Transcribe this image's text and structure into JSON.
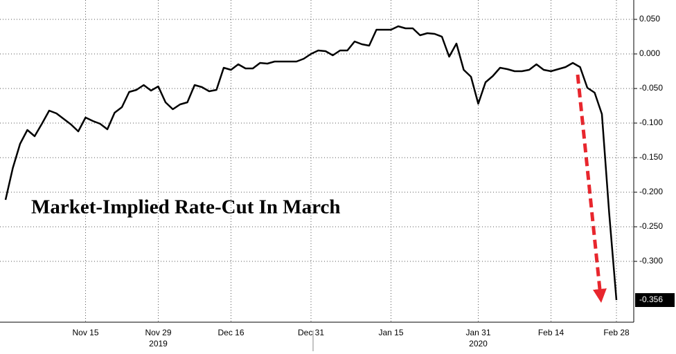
{
  "chart_data": {
    "type": "line",
    "title": "Market-Implied Rate-Cut In March",
    "categories": [
      null,
      null,
      null,
      null,
      null,
      null,
      null,
      null,
      null,
      null,
      null,
      "Nov 15",
      null,
      null,
      null,
      null,
      null,
      null,
      null,
      null,
      null,
      "Nov 29",
      null,
      null,
      null,
      null,
      null,
      null,
      null,
      null,
      null,
      "Dec 16",
      null,
      null,
      null,
      null,
      null,
      null,
      null,
      null,
      null,
      null,
      "Dec 31",
      null,
      null,
      null,
      null,
      null,
      null,
      null,
      null,
      null,
      null,
      "Jan 15",
      null,
      null,
      null,
      null,
      null,
      null,
      null,
      null,
      null,
      null,
      null,
      "Jan 31",
      null,
      null,
      null,
      null,
      null,
      null,
      null,
      null,
      null,
      "Feb 14",
      null,
      null,
      null,
      null,
      null,
      null,
      null,
      null,
      "Feb 28"
    ],
    "year_labels": [
      "2019",
      "2020"
    ],
    "values": [
      -0.211,
      -0.165,
      -0.13,
      -0.11,
      -0.119,
      -0.101,
      -0.082,
      -0.086,
      -0.094,
      -0.102,
      -0.112,
      -0.092,
      -0.097,
      -0.101,
      -0.109,
      -0.085,
      -0.077,
      -0.055,
      -0.052,
      -0.045,
      -0.053,
      -0.047,
      -0.07,
      -0.08,
      -0.073,
      -0.07,
      -0.045,
      -0.048,
      -0.054,
      -0.052,
      -0.02,
      -0.023,
      -0.015,
      -0.021,
      -0.021,
      -0.013,
      -0.014,
      -0.011,
      -0.011,
      -0.011,
      -0.011,
      -0.007,
      0.0,
      0.005,
      0.004,
      -0.002,
      0.005,
      0.005,
      0.018,
      0.014,
      0.012,
      0.035,
      0.035,
      0.035,
      0.04,
      0.037,
      0.037,
      0.027,
      0.03,
      0.029,
      0.025,
      -0.004,
      0.015,
      -0.023,
      -0.033,
      -0.072,
      -0.041,
      -0.032,
      -0.02,
      -0.022,
      -0.025,
      -0.025,
      -0.023,
      -0.015,
      -0.023,
      -0.025,
      -0.022,
      -0.019,
      -0.013,
      -0.019,
      -0.049,
      -0.056,
      -0.087,
      -0.23,
      -0.356
    ],
    "color": "#000000",
    "ylim": [
      -0.388,
      0.078
    ],
    "yticks": [
      {
        "value": 0.05,
        "label": "0.050"
      },
      {
        "value": 0,
        "label": "0.000"
      },
      {
        "value": -0.05,
        "label": "-0.050"
      },
      {
        "value": -0.1,
        "label": "-0.100"
      },
      {
        "value": -0.15,
        "label": "-0.150"
      },
      {
        "value": -0.2,
        "label": "-0.200"
      },
      {
        "value": -0.25,
        "label": "-0.250"
      },
      {
        "value": -0.3,
        "label": "-0.300"
      }
    ],
    "grid": true
  }
}
